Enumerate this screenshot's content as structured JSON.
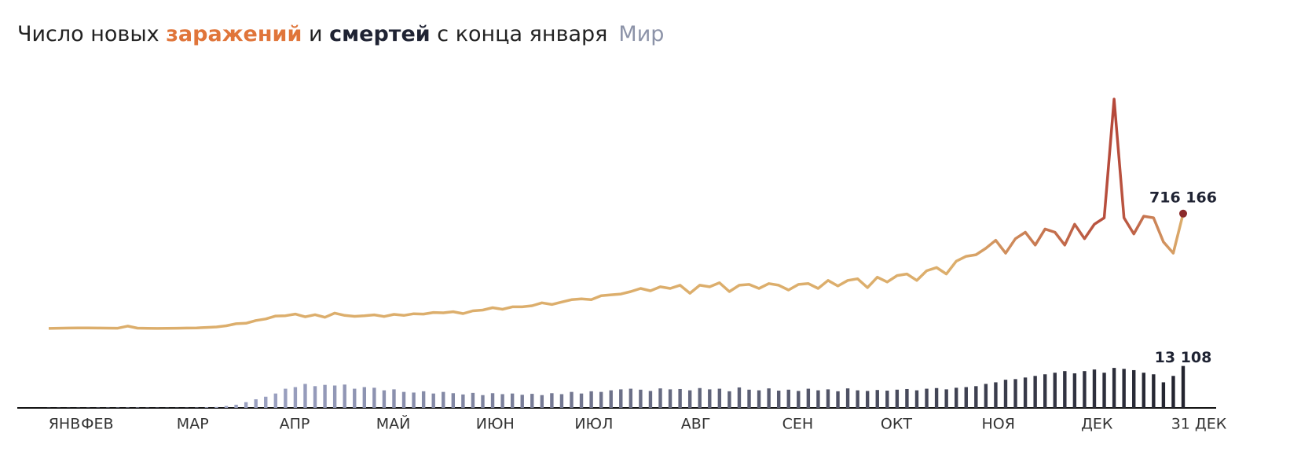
{
  "title": [
    "Число новых ",
    "заражений",
    " и ",
    "смертей",
    " с конца января"
  ],
  "region": "Мир",
  "chart_data": [
    {
      "type": "line",
      "color": "#dcae6c",
      "end_color": "#b5483a",
      "marker_color": "#8b2a2a",
      "xlim": [
        0,
        345
      ],
      "xticks": [
        {
          "value": 0,
          "label": "ЯНВ"
        },
        {
          "value": 10,
          "label": "ФЕВ"
        },
        {
          "value": 39,
          "label": "МАР"
        },
        {
          "value": 70,
          "label": "АПР"
        },
        {
          "value": 100,
          "label": "МАЙ"
        },
        {
          "value": 131,
          "label": "ИЮН"
        },
        {
          "value": 161,
          "label": "ИЮЛ"
        },
        {
          "value": 192,
          "label": "АВГ"
        },
        {
          "value": 223,
          "label": "СЕН"
        },
        {
          "value": 253,
          "label": "ОКТ"
        },
        {
          "value": 284,
          "label": "НОЯ"
        },
        {
          "value": 314,
          "label": "ДЕК"
        },
        {
          "value": 345,
          "label": "31 ДЕК"
        }
      ],
      "ylim": [
        0,
        1450000
      ],
      "x": [
        0,
        3,
        6,
        9,
        12,
        15,
        18,
        21,
        24,
        27,
        30,
        33,
        36,
        39,
        42,
        45,
        48,
        51,
        54,
        57,
        60,
        63,
        66,
        69,
        72,
        75,
        78,
        81,
        84,
        87,
        90,
        93,
        96,
        99,
        102,
        105,
        108,
        111,
        114,
        117,
        120,
        123,
        126,
        129,
        132,
        135,
        138,
        141,
        144,
        147,
        150,
        153,
        156,
        159,
        162,
        165,
        168,
        171,
        174,
        177,
        180,
        183,
        186,
        189,
        192,
        195,
        198,
        201,
        204,
        207,
        210,
        213,
        216,
        219,
        222,
        225,
        228,
        231,
        234,
        237,
        240,
        243,
        246,
        249,
        252,
        255,
        258,
        261,
        264,
        267,
        270,
        273,
        276,
        279,
        282,
        285,
        288,
        291,
        294,
        297,
        300,
        303,
        306,
        309,
        312,
        315,
        318,
        321,
        324,
        327,
        330,
        333,
        336,
        339,
        342,
        345
      ],
      "series": [
        {
          "name": "заражений",
          "values": [
            600,
            2000,
            2900,
            3800,
            3200,
            2700,
            2500,
            2000,
            15000,
            2500,
            1000,
            600,
            800,
            1800,
            2700,
            3800,
            7000,
            10000,
            17000,
            30000,
            33000,
            50000,
            60000,
            78000,
            80000,
            90000,
            73000,
            86000,
            70000,
            96000,
            82000,
            76000,
            80000,
            85000,
            75000,
            88000,
            82000,
            92000,
            90000,
            100000,
            98000,
            105000,
            93000,
            110000,
            115000,
            130000,
            120000,
            135000,
            135000,
            142000,
            160000,
            150000,
            165000,
            180000,
            185000,
            180000,
            205000,
            210000,
            215000,
            230000,
            250000,
            235000,
            260000,
            250000,
            270000,
            220000,
            270000,
            260000,
            285000,
            230000,
            270000,
            275000,
            250000,
            280000,
            270000,
            240000,
            275000,
            280000,
            250000,
            300000,
            265000,
            300000,
            310000,
            255000,
            320000,
            290000,
            330000,
            340000,
            300000,
            360000,
            380000,
            340000,
            420000,
            450000,
            460000,
            500000,
            550000,
            470000,
            560000,
            600000,
            520000,
            620000,
            600000,
            520000,
            650000,
            560000,
            650000,
            690000,
            1430000,
            690000,
            590000,
            700000,
            690000,
            540000,
            470000,
            716166
          ],
          "last_value_label": "716 166"
        }
      ]
    },
    {
      "type": "bar",
      "color": "#9aa0c0",
      "end_color": "#22232e",
      "xlim": [
        0,
        345
      ],
      "ylim": [
        0,
        14000
      ],
      "x": [
        0,
        3,
        6,
        9,
        12,
        15,
        18,
        21,
        24,
        27,
        30,
        33,
        36,
        39,
        42,
        45,
        48,
        51,
        54,
        57,
        60,
        63,
        66,
        69,
        72,
        75,
        78,
        81,
        84,
        87,
        90,
        93,
        96,
        99,
        102,
        105,
        108,
        111,
        114,
        117,
        120,
        123,
        126,
        129,
        132,
        135,
        138,
        141,
        144,
        147,
        150,
        153,
        156,
        159,
        162,
        165,
        168,
        171,
        174,
        177,
        180,
        183,
        186,
        189,
        192,
        195,
        198,
        201,
        204,
        207,
        210,
        213,
        216,
        219,
        222,
        225,
        228,
        231,
        234,
        237,
        240,
        243,
        246,
        249,
        252,
        255,
        258,
        261,
        264,
        267,
        270,
        273,
        276,
        279,
        282,
        285,
        288,
        291,
        294,
        297,
        300,
        303,
        306,
        309,
        312,
        315,
        318,
        321,
        324,
        327,
        330,
        333,
        336,
        339,
        342,
        345
      ],
      "series": [
        {
          "name": "смертей",
          "values": [
            50,
            60,
            50,
            60,
            70,
            80,
            90,
            100,
            110,
            120,
            80,
            70,
            60,
            60,
            70,
            100,
            200,
            300,
            600,
            1000,
            1800,
            2700,
            3500,
            4500,
            6000,
            6500,
            7500,
            6800,
            7200,
            7000,
            7300,
            6000,
            6500,
            6300,
            5500,
            5800,
            5000,
            4800,
            5200,
            4500,
            5000,
            4600,
            4200,
            4700,
            4000,
            4600,
            4300,
            4500,
            4100,
            4400,
            4000,
            4600,
            4300,
            5000,
            4500,
            5200,
            5000,
            5500,
            5800,
            6000,
            5700,
            5300,
            6100,
            5800,
            5900,
            5500,
            6200,
            5800,
            6000,
            5200,
            6400,
            5700,
            5500,
            6100,
            5400,
            5700,
            5300,
            6000,
            5500,
            5800,
            5200,
            6100,
            5500,
            5300,
            5600,
            5400,
            5700,
            5900,
            5500,
            6000,
            6200,
            5800,
            6300,
            6500,
            6800,
            7500,
            8000,
            8800,
            9000,
            9500,
            10000,
            10500,
            11000,
            11500,
            10800,
            11500,
            12000,
            11000,
            12500,
            12200,
            11800,
            11000,
            10500,
            8000,
            10000,
            13108
          ],
          "last_value_label": "13 108"
        }
      ]
    }
  ]
}
